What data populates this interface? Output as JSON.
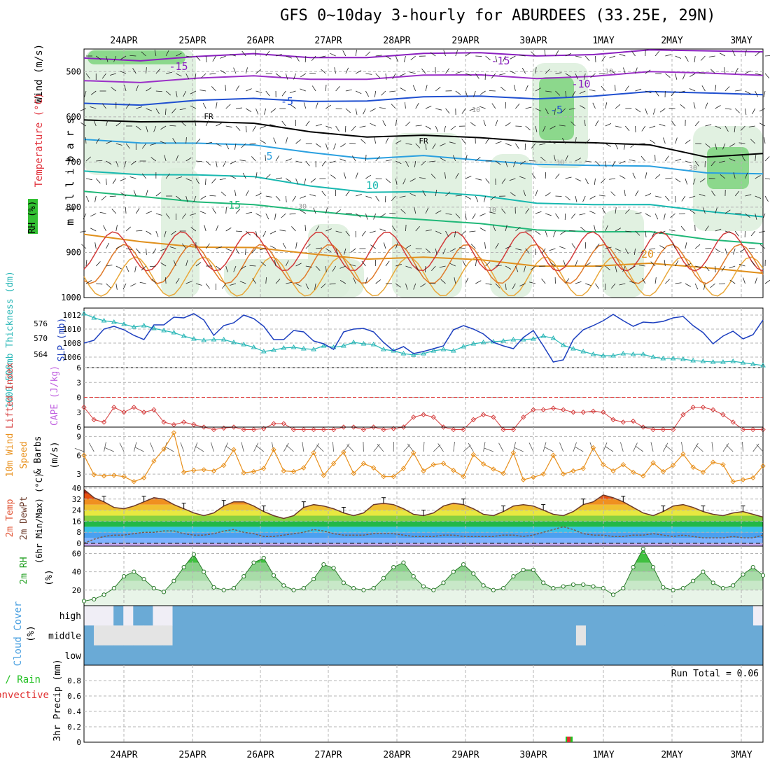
{
  "title": "GFS 0~10day 3-hourly for ABURDEES (33.25E, 29N)",
  "dates": [
    "24APR",
    "25APR",
    "26APR",
    "27APR",
    "28APR",
    "29APR",
    "30APR",
    "1MAY",
    "2MAY",
    "3MAY"
  ],
  "colors": {
    "grid": "#b4b4b4",
    "temp_warm": "#e07a2a",
    "temp_cold": "#8a2be2",
    "rh_green": "#33c033",
    "slp": "#1c3fbf",
    "thick": "#2ab7b7",
    "lifted": "#d64040",
    "wind_orange": "#e8901c",
    "dew": "#7b5b4b",
    "cloud": "#6aaad6"
  },
  "chart_data": [
    {
      "type": "heatmap",
      "panel": "upper-air",
      "ylabels": [
        "Temperature (°C)",
        "Wind (m/s)",
        "RH (%)",
        "m i l l i b a r s"
      ],
      "yticks": [
        500,
        600,
        700,
        800,
        900,
        1000
      ],
      "ylim": [
        450,
        1000
      ],
      "contour_labels": {
        "temperature": [
          "-15",
          "-15",
          "-10",
          "-5",
          "-5",
          "FR",
          "FR",
          "5",
          "10",
          "15",
          "20"
        ],
        "rh": [
          "10",
          "10",
          "30",
          "30",
          "30",
          "10"
        ]
      },
      "isotherms": [
        {
          "label": "-15",
          "levels": [
            470,
            470,
            468,
            466,
            466,
            464,
            464,
            462,
            460,
            460,
            458,
            455,
            450
          ]
        },
        {
          "label": "-10",
          "levels": [
            520,
            518,
            516,
            515,
            514,
            512,
            512,
            511,
            510,
            508,
            506,
            504,
            502
          ]
        },
        {
          "label": "-5",
          "levels": [
            570,
            568,
            565,
            565,
            563,
            560,
            560,
            558,
            555,
            552,
            550,
            548,
            545
          ]
        },
        {
          "label": "FR",
          "levels": [
            607,
            605,
            612,
            620,
            630,
            640,
            645,
            650,
            650,
            655,
            668,
            690,
            675
          ]
        },
        {
          "label": "5",
          "levels": [
            650,
            652,
            660,
            668,
            676,
            688,
            690,
            700,
            700,
            705,
            715,
            725,
            720
          ]
        },
        {
          "label": "10",
          "levels": [
            720,
            722,
            730,
            738,
            750,
            762,
            770,
            778,
            786,
            792,
            800,
            810,
            815
          ]
        },
        {
          "label": "15",
          "levels": [
            765,
            770,
            790,
            800,
            805,
            815,
            832,
            840,
            845,
            852,
            860,
            872,
            875
          ]
        },
        {
          "label": "20",
          "levels": [
            860,
            870,
            890,
            895,
            900,
            910,
            915,
            920,
            925,
            928,
            930,
            935,
            940
          ]
        }
      ]
    },
    {
      "type": "line",
      "panel": "slp-thickness",
      "ylabels": [
        "1000-500mb Thickness (dm)",
        "SLP (mb)"
      ],
      "left_ticks": [
        564,
        570,
        576
      ],
      "right_ticks": [
        1006,
        1008,
        1010,
        1012
      ],
      "ylim": [
        1004.5,
        1013
      ],
      "series": [
        {
          "name": "SLP (mb)",
          "values": [
            1008.0,
            1008.4,
            1010.0,
            1010.4,
            1009.9,
            1009.1,
            1008.5,
            1010.6,
            1010.6,
            1011.7,
            1011.6,
            1012.2,
            1011.3,
            1009.1,
            1010.5,
            1010.9,
            1012.0,
            1011.5,
            1010.4,
            1008.5,
            1008.5,
            1009.8,
            1009.6,
            1008.3,
            1007.9,
            1007.1,
            1009.6,
            1010.0,
            1010.1,
            1009.6,
            1008.1,
            1006.9,
            1007.5,
            1006.5,
            1006.8,
            1007.2,
            1007.6,
            1009.9,
            1010.5,
            1010.0,
            1009.3,
            1008.1,
            1007.6,
            1007.2,
            1008.8,
            1009.8,
            1007.6,
            1005.3,
            1005.6,
            1008.5,
            1009.9,
            1010.5,
            1011.2,
            1012.1,
            1011.2,
            1010.4,
            1011.0,
            1010.9,
            1011.1,
            1011.6,
            1011.8,
            1010.5,
            1009.5,
            1007.9,
            1009.0,
            1009.7,
            1008.6,
            1009.2,
            1011.3
          ]
        },
        {
          "name": "1000-500mb Thickness (dm)",
          "values": [
            1012.2,
            1011.6,
            1011.2,
            1011.0,
            1010.7,
            1010.3,
            1010.5,
            1010.1,
            1009.8,
            1009.5,
            1009.0,
            1008.6,
            1008.4,
            1008.5,
            1008.5,
            1008.1,
            1007.8,
            1007.4,
            1006.8,
            1007.0,
            1007.3,
            1007.4,
            1007.2,
            1007.1,
            1007.6,
            1007.4,
            1007.6,
            1008.1,
            1007.9,
            1007.8,
            1007.1,
            1006.9,
            1006.5,
            1006.3,
            1006.5,
            1006.9,
            1007.1,
            1006.9,
            1007.5,
            1007.9,
            1008.1,
            1008.2,
            1008.3,
            1008.5,
            1008.5,
            1008.6,
            1009.0,
            1008.7,
            1007.7,
            1007.2,
            1006.8,
            1006.4,
            1006.2,
            1006.2,
            1006.5,
            1006.4,
            1006.4,
            1006.0,
            1005.8,
            1005.8,
            1005.7,
            1005.5,
            1005.4,
            1005.3,
            1005.3,
            1005.4,
            1005.2,
            1005.0,
            1004.8
          ]
        }
      ]
    },
    {
      "type": "line",
      "panel": "stability",
      "ylabels": [
        "Lifted Index",
        "CAPE (J/kg)"
      ],
      "yticks": [
        -6,
        -3,
        0,
        3,
        6
      ],
      "ylim": [
        -6,
        6
      ],
      "series": [
        {
          "name": "Lifted Index",
          "values": [
            2,
            4.5,
            5,
            2,
            3,
            2,
            3,
            2.5,
            5,
            5.5,
            5,
            5.5,
            6,
            6.5,
            6.2,
            6,
            6.5,
            6.5,
            6.3,
            5.3,
            5.3,
            6.5,
            6.5,
            6.5,
            6.5,
            6.5,
            6,
            6,
            6.5,
            6,
            6.5,
            6.3,
            6,
            4,
            3.5,
            4,
            6,
            6.5,
            6.5,
            4.5,
            3.5,
            4,
            6.5,
            6.5,
            4,
            2.5,
            2.5,
            2.2,
            2.5,
            3,
            3,
            2.8,
            3,
            4.5,
            5,
            4.8,
            6,
            6.5,
            6.5,
            6.5,
            3.5,
            2,
            2,
            2.5,
            3.5,
            5,
            6.5,
            6.5,
            6.5
          ]
        }
      ]
    },
    {
      "type": "line",
      "panel": "10m-wind",
      "ylabels": [
        "10m Wind",
        "Speed",
        "& Barbs",
        "(m/s)"
      ],
      "yticks": [
        3,
        6,
        9
      ],
      "ylim": [
        1,
        10.5
      ],
      "series": [
        {
          "name": "10m Wind Speed",
          "values": [
            6,
            2.9,
            2.7,
            2.8,
            2.6,
            1.8,
            2.4,
            5.1,
            7.0,
            9.6,
            3.3,
            3.6,
            3.7,
            3.5,
            4.4,
            6.9,
            3.2,
            3.4,
            3.9,
            6.9,
            3.5,
            3.4,
            4.0,
            6.4,
            2.8,
            4.7,
            6.5,
            3.1,
            4.7,
            4.0,
            2.6,
            2.6,
            3.9,
            6.4,
            3.5,
            4.5,
            4.7,
            3.6,
            2.6,
            6.1,
            4.6,
            3.8,
            3.1,
            6.4,
            2.1,
            2.5,
            3.0,
            6.0,
            3.0,
            3.5,
            3.9,
            7.2,
            4.5,
            3.5,
            4.5,
            3.3,
            2.7,
            4.8,
            3.4,
            4.4,
            6.2,
            4.1,
            3.3,
            4.9,
            4.5,
            1.8,
            2.1,
            2.4,
            4.3
          ]
        }
      ]
    },
    {
      "type": "area",
      "panel": "2m-temp",
      "ylabels": [
        "2m Temp",
        "2m DewPt",
        "(6hr Min/Max) (°C)"
      ],
      "yticks": [
        0,
        8,
        16,
        24,
        32,
        40
      ],
      "ylim": [
        -2,
        41
      ],
      "series": [
        {
          "name": "2m Temp",
          "values": [
            39,
            33,
            30,
            26,
            25,
            27,
            30,
            33,
            32,
            28,
            25,
            22,
            20,
            22,
            27,
            30,
            30,
            27,
            23,
            20,
            18,
            20,
            26,
            28,
            27,
            25,
            22,
            20,
            22,
            28,
            29,
            28,
            25,
            21,
            20,
            22,
            27,
            29,
            28,
            25,
            21,
            20,
            23,
            27,
            28,
            27,
            24,
            21,
            20,
            23,
            28,
            30,
            35,
            33,
            30,
            26,
            22,
            20,
            23,
            27,
            28,
            26,
            23,
            21,
            20,
            22,
            23,
            21,
            19
          ]
        },
        {
          "name": "2m DewPt",
          "values": [
            0,
            3,
            5,
            6,
            6,
            7,
            8,
            8,
            9,
            9,
            7,
            6,
            6,
            7,
            9,
            10,
            8,
            7,
            5,
            5,
            6,
            7,
            8,
            10,
            9,
            7,
            6,
            6,
            6,
            7,
            7,
            7,
            6,
            5,
            5,
            5,
            6,
            6,
            5,
            5,
            5,
            5,
            6,
            6,
            5,
            6,
            8,
            10,
            12,
            10,
            7,
            6,
            6,
            5,
            5,
            6,
            6,
            7,
            6,
            5,
            6,
            5,
            4,
            4,
            4,
            5,
            4,
            4,
            6
          ]
        }
      ]
    },
    {
      "type": "area",
      "panel": "2m-rh",
      "ylabels": [
        "2m RH",
        "(%)"
      ],
      "yticks": [
        20,
        40,
        60
      ],
      "ylim": [
        3,
        68
      ],
      "series": [
        {
          "name": "2m RH",
          "values": [
            8,
            10,
            15,
            22,
            35,
            40,
            32,
            22,
            18,
            30,
            45,
            59,
            40,
            23,
            20,
            22,
            35,
            50,
            55,
            36,
            25,
            20,
            22,
            32,
            48,
            44,
            28,
            22,
            20,
            22,
            33,
            45,
            50,
            35,
            24,
            20,
            28,
            40,
            48,
            38,
            25,
            20,
            22,
            35,
            42,
            42,
            28,
            22,
            24,
            26,
            26,
            24,
            22,
            15,
            22,
            45,
            65,
            45,
            23,
            20,
            22,
            30,
            40,
            28,
            22,
            25,
            37,
            45,
            36
          ]
        }
      ]
    },
    {
      "type": "heatmap",
      "panel": "cloud-cover",
      "ylabels": [
        "Cloud Cover",
        "(%)"
      ],
      "ytick_labels": [
        "high",
        "middle",
        "low"
      ],
      "cloud_fraction_high": [
        0,
        0,
        0,
        1,
        0,
        1,
        1,
        0,
        0,
        1,
        1,
        1,
        1,
        1,
        1,
        1,
        1,
        1,
        1,
        1,
        1,
        1,
        1,
        1,
        1,
        1,
        1,
        1,
        1,
        1,
        1,
        1,
        1,
        1,
        1,
        1,
        1,
        1,
        1,
        1,
        1,
        1,
        1,
        1,
        1,
        1,
        1,
        1,
        1,
        1,
        1,
        1,
        1,
        1,
        1,
        1,
        1,
        1,
        1,
        1,
        1,
        1,
        1,
        1,
        1,
        1,
        1,
        1,
        0
      ],
      "cloud_fraction_middle": [
        1,
        0,
        0,
        0,
        0,
        0,
        0,
        0,
        0,
        1,
        1,
        1,
        1,
        1,
        1,
        1,
        1,
        1,
        1,
        1,
        1,
        1,
        1,
        1,
        1,
        1,
        1,
        1,
        1,
        1,
        1,
        1,
        1,
        1,
        1,
        1,
        1,
        1,
        1,
        1,
        1,
        1,
        1,
        1,
        1,
        1,
        1,
        1,
        1,
        1,
        0,
        1,
        1,
        1,
        1,
        1,
        1,
        1,
        1,
        1,
        1,
        1,
        1,
        1,
        1,
        1,
        1,
        1,
        1
      ],
      "cloud_fraction_low": [
        1,
        1,
        1,
        1,
        1,
        1,
        1,
        1,
        1,
        1,
        1,
        1,
        1,
        1,
        1,
        1,
        1,
        1,
        1,
        1,
        1,
        1,
        1,
        1,
        1,
        1,
        1,
        1,
        1,
        1,
        1,
        1,
        1,
        1,
        1,
        1,
        1,
        1,
        1,
        1,
        1,
        1,
        1,
        1,
        1,
        1,
        1,
        1,
        1,
        1,
        1,
        1,
        1,
        1,
        1,
        1,
        1,
        1,
        1,
        1,
        1,
        1,
        1,
        1,
        1,
        1,
        1,
        1,
        1
      ]
    },
    {
      "type": "bar",
      "panel": "precip",
      "ylabels": [
        "Total / Rain",
        "Convective",
        "3hr Precip (mm)"
      ],
      "yticks": [
        0,
        0.2,
        0.4,
        0.6,
        0.8
      ],
      "ylim": [
        0,
        1
      ],
      "annotation": "Run Total = 0.06",
      "series": [
        {
          "name": "3hr Precip (mm)",
          "values": [
            0,
            0,
            0,
            0,
            0,
            0,
            0,
            0,
            0,
            0,
            0,
            0,
            0,
            0,
            0,
            0,
            0,
            0,
            0,
            0,
            0,
            0,
            0,
            0,
            0,
            0,
            0,
            0,
            0,
            0,
            0,
            0,
            0,
            0,
            0,
            0,
            0,
            0,
            0,
            0,
            0,
            0,
            0,
            0,
            0,
            0,
            0,
            0,
            0,
            0,
            0,
            0,
            0,
            0,
            0,
            0,
            0,
            0,
            0,
            0,
            0.06,
            0,
            0,
            0,
            0,
            0,
            0,
            0,
            0
          ]
        }
      ]
    }
  ]
}
